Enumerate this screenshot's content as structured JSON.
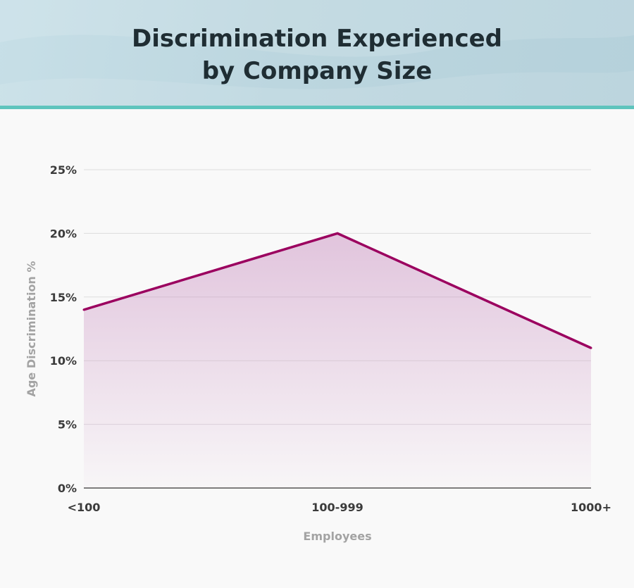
{
  "header": {
    "title_line1": "Discrimination Experienced",
    "title_line2": "by Company Size",
    "background_color": "#bcd6df",
    "rule_color": "#5ec4bd"
  },
  "chart_data": {
    "type": "area",
    "title": "Discrimination Experienced by Company Size",
    "xlabel": "Employees",
    "ylabel": "Age Discrimination %",
    "categories": [
      "<100",
      "100-999",
      "1000+"
    ],
    "values": [
      14,
      20,
      11
    ],
    "ylim": [
      0,
      25
    ],
    "yticks": [
      0,
      5,
      10,
      15,
      20,
      25
    ],
    "ytick_labels": [
      "0%",
      "5%",
      "10%",
      "15%",
      "20%",
      "25%"
    ],
    "grid": true,
    "legend": "none",
    "line_color": "#9b005f",
    "fill_color": "#c98fc0"
  }
}
